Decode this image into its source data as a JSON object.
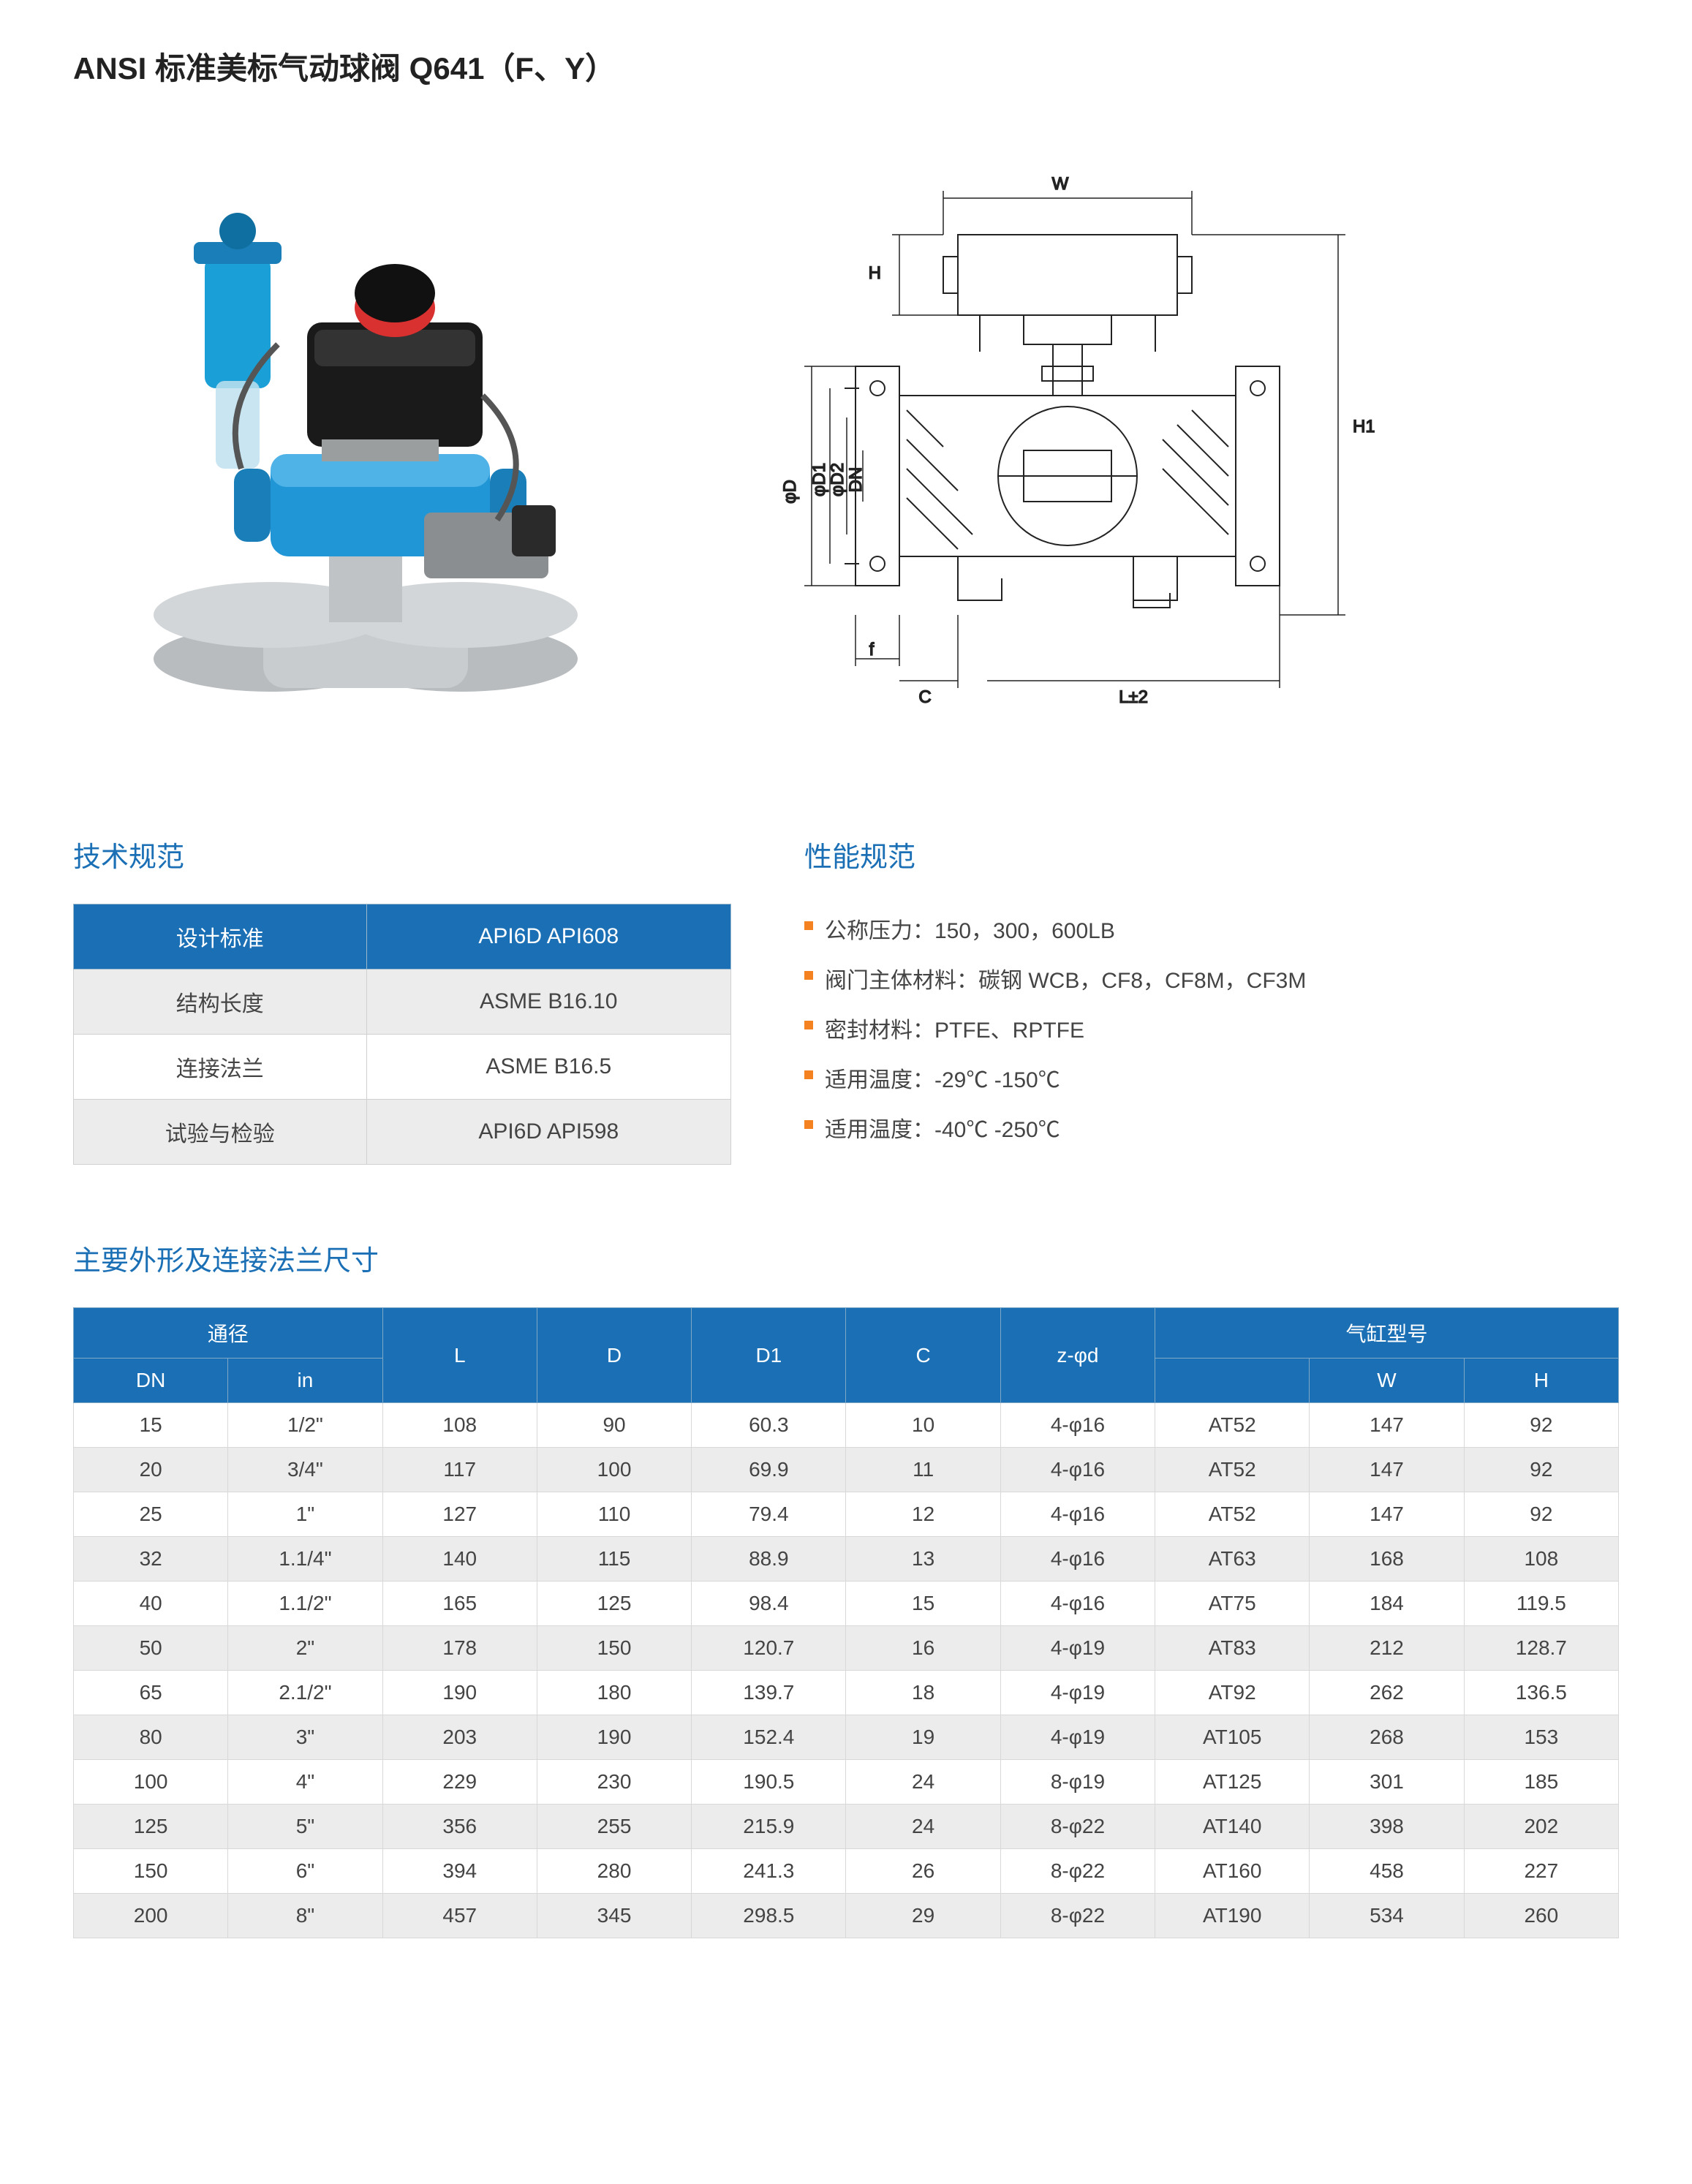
{
  "title": "ANSI 标准美标气动球阀 Q641（F、Y）",
  "photo_placeholder": "[产品实物图: 气动球阀带蓝色执行器、电磁阀、限位开关、过滤减压器]",
  "drawing_placeholder": "[技术图纸: 球阀剖面 标注 W H H1 φD φD1 φD2 DN f C L±2]",
  "drawing_labels": {
    "W": "W",
    "H": "H",
    "H1": "H1",
    "phiD": "φD",
    "phiD1": "φD1",
    "phiD2": "φD2",
    "DN": "DN",
    "f": "f",
    "C": "C",
    "L": "L±2"
  },
  "tech_section_title": "技术规范",
  "perf_section_title": "性能规范",
  "tech_table": {
    "header": [
      "设计标准",
      "API6D API608"
    ],
    "rows": [
      [
        "结构长度",
        "ASME B16.10"
      ],
      [
        "连接法兰",
        "ASME B16.5"
      ],
      [
        "试验与检验",
        "API6D API598"
      ]
    ]
  },
  "perf_items": [
    "公称压力：150，300，600LB",
    "阀门主体材料：碳钢 WCB，CF8，CF8M，CF3M",
    "密封材料：PTFE、RPTFE",
    "适用温度：-29℃ -150℃",
    "适用温度：-40℃ -250℃"
  ],
  "dim_section_title": "主要外形及连接法兰尺寸",
  "dim_table": {
    "header_group_1": "通径",
    "header_group_2": "气缸型号",
    "columns": [
      "DN",
      "in",
      "L",
      "D",
      "D1",
      "C",
      "z-φd",
      "",
      "W",
      "H"
    ],
    "rows": [
      [
        "15",
        "1/2\"",
        "108",
        "90",
        "60.3",
        "10",
        "4-φ16",
        "AT52",
        "147",
        "92"
      ],
      [
        "20",
        "3/4\"",
        "117",
        "100",
        "69.9",
        "11",
        "4-φ16",
        "AT52",
        "147",
        "92"
      ],
      [
        "25",
        "1\"",
        "127",
        "110",
        "79.4",
        "12",
        "4-φ16",
        "AT52",
        "147",
        "92"
      ],
      [
        "32",
        "1.1/4\"",
        "140",
        "115",
        "88.9",
        "13",
        "4-φ16",
        "AT63",
        "168",
        "108"
      ],
      [
        "40",
        "1.1/2\"",
        "165",
        "125",
        "98.4",
        "15",
        "4-φ16",
        "AT75",
        "184",
        "119.5"
      ],
      [
        "50",
        "2\"",
        "178",
        "150",
        "120.7",
        "16",
        "4-φ19",
        "AT83",
        "212",
        "128.7"
      ],
      [
        "65",
        "2.1/2\"",
        "190",
        "180",
        "139.7",
        "18",
        "4-φ19",
        "AT92",
        "262",
        "136.5"
      ],
      [
        "80",
        "3\"",
        "203",
        "190",
        "152.4",
        "19",
        "4-φ19",
        "AT105",
        "268",
        "153"
      ],
      [
        "100",
        "4\"",
        "229",
        "230",
        "190.5",
        "24",
        "8-φ19",
        "AT125",
        "301",
        "185"
      ],
      [
        "125",
        "5\"",
        "356",
        "255",
        "215.9",
        "24",
        "8-φ22",
        "AT140",
        "398",
        "202"
      ],
      [
        "150",
        "6\"",
        "394",
        "280",
        "241.3",
        "26",
        "8-φ22",
        "AT160",
        "458",
        "227"
      ],
      [
        "200",
        "8\"",
        "457",
        "345",
        "298.5",
        "29",
        "8-φ22",
        "AT190",
        "534",
        "260"
      ]
    ]
  },
  "colors": {
    "brand_blue": "#1a6fb5",
    "bullet_orange": "#f58220",
    "row_alt": "#ececec",
    "border": "#d0d0d0",
    "text": "#444444"
  }
}
